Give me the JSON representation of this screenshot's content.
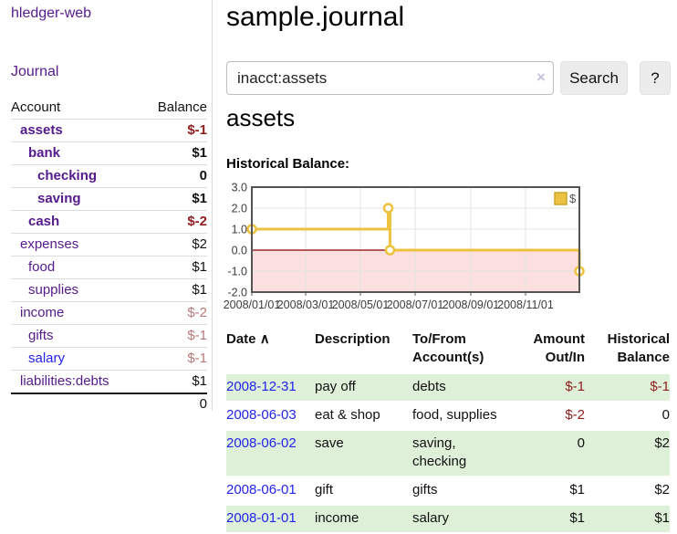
{
  "app": {
    "title": "hledger-web",
    "nav_journal": "Journal"
  },
  "colors": {
    "link_purple": "#551a8b",
    "link_blue": "#2323ee",
    "negative_dark_red": "#8f1d1d",
    "negative_rose": "#bb7878",
    "row_stripe_green": "#dff0d8",
    "series_gold": "#edc240",
    "chart_negative_fill": "#fcdfdf",
    "chart_zero_line": "#8b0000"
  },
  "sidebar": {
    "header": {
      "account": "Account",
      "balance": "Balance"
    },
    "accounts": [
      {
        "name": "assets",
        "indent": 1,
        "bold": true,
        "name_color": "purple",
        "balance": "$-1",
        "balance_style": "dark"
      },
      {
        "name": "bank",
        "indent": 2,
        "bold": true,
        "name_color": "purple",
        "balance": "$1",
        "balance_style": "normal"
      },
      {
        "name": "checking",
        "indent": 3,
        "bold": true,
        "name_color": "purple",
        "balance": "0",
        "balance_style": "normal"
      },
      {
        "name": "saving",
        "indent": 3,
        "bold": true,
        "name_color": "purple",
        "balance": "$1",
        "balance_style": "normal"
      },
      {
        "name": "cash",
        "indent": 2,
        "bold": true,
        "name_color": "purple",
        "balance": "$-2",
        "balance_style": "dark"
      },
      {
        "name": "expenses",
        "indent": 1,
        "bold": false,
        "name_color": "purple",
        "balance": "$2",
        "balance_style": "normal"
      },
      {
        "name": "food",
        "indent": 2,
        "bold": false,
        "name_color": "purple",
        "balance": "$1",
        "balance_style": "normal"
      },
      {
        "name": "supplies",
        "indent": 2,
        "bold": false,
        "name_color": "purple",
        "balance": "$1",
        "balance_style": "normal"
      },
      {
        "name": "income",
        "indent": 1,
        "bold": false,
        "name_color": "purple",
        "balance": "$-2",
        "balance_style": "rose"
      },
      {
        "name": "gifts",
        "indent": 2,
        "bold": false,
        "name_color": "purple",
        "balance": "$-1",
        "balance_style": "rose"
      },
      {
        "name": "salary",
        "indent": 2,
        "bold": false,
        "name_color": "blue",
        "balance": "$-1",
        "balance_style": "rose"
      },
      {
        "name": "liabilities:debts",
        "indent": 1,
        "bold": false,
        "name_color": "purple",
        "balance": "$1",
        "balance_style": "normal"
      }
    ],
    "total": "0"
  },
  "main": {
    "title": "sample.journal",
    "search": {
      "value": "inacct:assets",
      "clear_icon": "×",
      "button_label": "Search",
      "help_label": "?"
    },
    "account_heading": "assets",
    "chart_heading": "Historical Balance:"
  },
  "chart_data": {
    "type": "line",
    "title": "Historical Balance",
    "step": true,
    "series": [
      {
        "name": "$",
        "color": "#edc240",
        "points": [
          {
            "date": "2008-01-01",
            "value": 1
          },
          {
            "date": "2008-06-01",
            "value": 2
          },
          {
            "date": "2008-06-03",
            "value": 0
          },
          {
            "date": "2008-12-31",
            "value": -1
          }
        ]
      }
    ],
    "x_range": [
      "2008-01-01",
      "2008-12-31"
    ],
    "ylim": [
      -2,
      3
    ],
    "y_ticks": [
      {
        "value": 3,
        "label": "3.0"
      },
      {
        "value": 2,
        "label": "2.0"
      },
      {
        "value": 1,
        "label": "1.0"
      },
      {
        "value": 0,
        "label": "0.0"
      },
      {
        "value": -1,
        "label": "-1.0"
      },
      {
        "value": -2,
        "label": "-2.0"
      }
    ],
    "x_ticks": [
      {
        "date": "2008-01-01",
        "label": "2008/01/01"
      },
      {
        "date": "2008-03-01",
        "label": "2008/03/01"
      },
      {
        "date": "2008-05-01",
        "label": "2008/05/01"
      },
      {
        "date": "2008-07-01",
        "label": "2008/07/01"
      },
      {
        "date": "2008-09-01",
        "label": "2008/09/01"
      },
      {
        "date": "2008-11-01",
        "label": "2008/11/01"
      }
    ],
    "legend": {
      "label": "$",
      "position": "top-right"
    },
    "grid": true,
    "negative_region_shaded": true
  },
  "register": {
    "headers": {
      "date": "Date",
      "sort_indicator": "∧",
      "description": "Description",
      "accounts": "To/From Account(s)",
      "amount": "Amount Out/In",
      "balance": "Historical Balance"
    },
    "rows": [
      {
        "date": "2008-12-31",
        "description": "pay off",
        "accounts": "debts",
        "amount": "$-1",
        "amount_negative": true,
        "balance": "$-1",
        "balance_negative": true
      },
      {
        "date": "2008-06-03",
        "description": "eat & shop",
        "accounts": "food, supplies",
        "amount": "$-2",
        "amount_negative": true,
        "balance": "0",
        "balance_negative": false
      },
      {
        "date": "2008-06-02",
        "description": "save",
        "accounts": "saving, checking",
        "amount": "0",
        "amount_negative": false,
        "balance": "$2",
        "balance_negative": false
      },
      {
        "date": "2008-06-01",
        "description": "gift",
        "accounts": "gifts",
        "amount": "$1",
        "amount_negative": false,
        "balance": "$2",
        "balance_negative": false
      },
      {
        "date": "2008-01-01",
        "description": "income",
        "accounts": "salary",
        "amount": "$1",
        "amount_negative": false,
        "balance": "$1",
        "balance_negative": false
      }
    ]
  }
}
